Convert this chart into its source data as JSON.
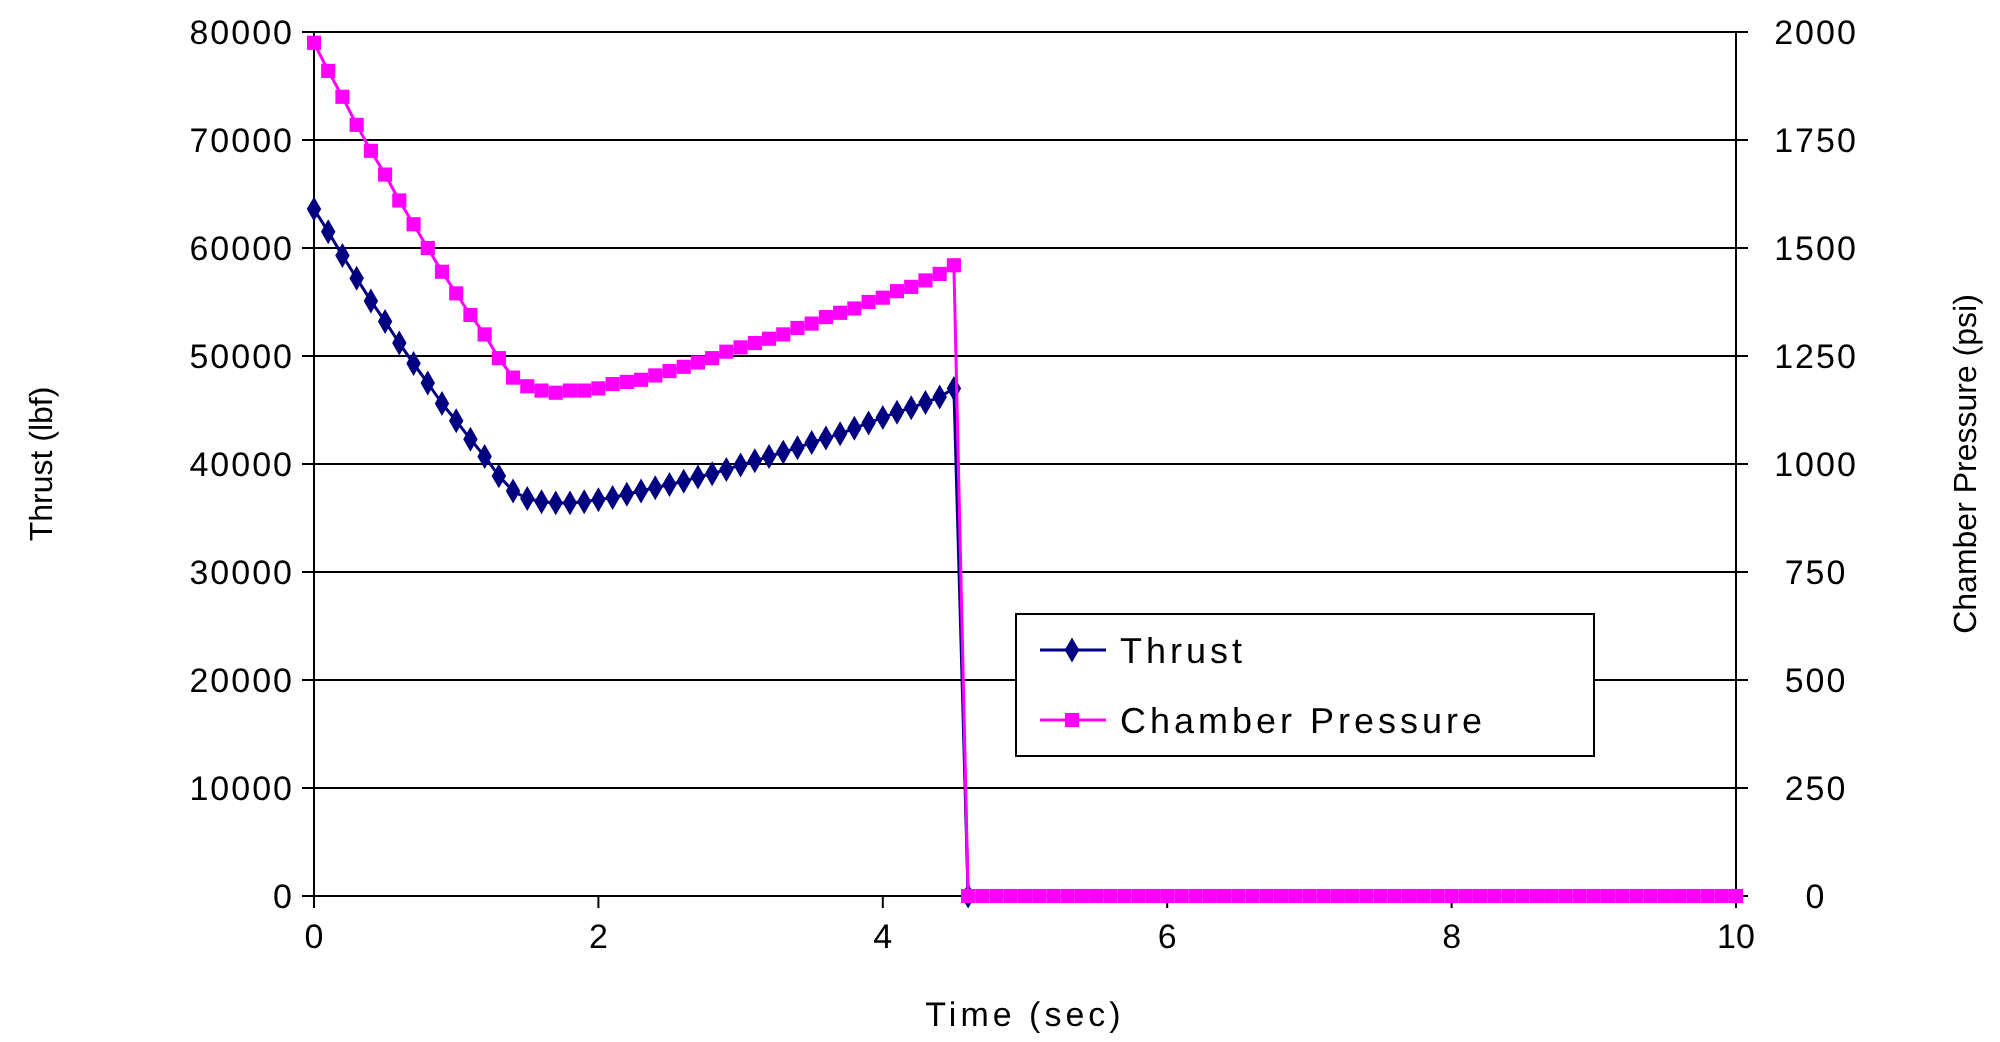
{
  "chart_data": {
    "type": "line",
    "xlabel": "Time (sec)",
    "ylabel": "Thrust (lbf)",
    "y2label": "Chamber Pressure (psi)",
    "x": [
      0,
      0.1,
      0.2,
      0.3,
      0.4,
      0.5,
      0.6,
      0.7,
      0.8,
      0.9,
      1,
      1.1,
      1.2,
      1.3,
      1.4,
      1.5,
      1.6,
      1.7,
      1.8,
      1.9,
      2,
      2.1,
      2.2,
      2.3,
      2.4,
      2.5,
      2.6,
      2.7,
      2.8,
      2.9,
      3,
      3.1,
      3.2,
      3.3,
      3.4,
      3.5,
      3.6,
      3.7,
      3.8,
      3.9,
      4,
      4.1,
      4.2,
      4.3,
      4.4,
      4.5,
      4.6,
      4.7,
      4.8,
      4.9,
      5,
      5.1,
      5.2,
      5.3,
      5.4,
      5.5,
      5.6,
      5.7,
      5.8,
      5.9,
      6,
      6.1,
      6.2,
      6.3,
      6.4,
      6.5,
      6.6,
      6.7,
      6.8,
      6.9,
      7,
      7.1,
      7.2,
      7.3,
      7.4,
      7.5,
      7.6,
      7.7,
      7.8,
      7.9,
      8,
      8.1,
      8.2,
      8.3,
      8.4,
      8.5,
      8.6,
      8.7,
      8.8,
      8.9,
      9,
      9.1,
      9.2,
      9.3,
      9.4,
      9.5,
      9.6,
      9.7,
      9.8,
      9.9,
      10
    ],
    "series": [
      {
        "name": "Thrust",
        "color": "#000080",
        "marker": "diamond",
        "values": [
          63600,
          61500,
          59300,
          57200,
          55100,
          53200,
          51200,
          49300,
          47500,
          45600,
          44000,
          42300,
          40700,
          38900,
          37500,
          36800,
          36500,
          36400,
          36400,
          36500,
          36700,
          36900,
          37200,
          37500,
          37800,
          38100,
          38400,
          38800,
          39100,
          39500,
          39900,
          40300,
          40700,
          41100,
          41500,
          42000,
          42400,
          42800,
          43300,
          43800,
          44300,
          44800,
          45200,
          45700,
          46200,
          47000,
          0,
          null,
          null,
          null,
          null,
          null,
          null,
          null,
          null,
          null,
          null,
          null,
          null,
          null,
          null,
          null,
          null,
          null,
          null,
          null,
          null,
          null,
          null,
          null,
          null,
          null,
          null,
          null,
          null,
          null,
          null,
          null,
          null,
          null,
          null,
          null,
          null,
          null,
          null,
          null,
          null,
          null,
          null,
          null,
          null,
          null,
          null,
          null,
          null,
          null,
          null,
          null,
          null,
          null,
          null
        ]
      },
      {
        "name": "Chamber Pressure",
        "color": "#ff00ff",
        "marker": "square",
        "axis": "y2",
        "values": [
          1975,
          1910,
          1850,
          1785,
          1725,
          1670,
          1610,
          1555,
          1500,
          1445,
          1395,
          1345,
          1300,
          1245,
          1200,
          1180,
          1170,
          1165,
          1170,
          1170,
          1175,
          1185,
          1190,
          1195,
          1205,
          1215,
          1225,
          1235,
          1245,
          1260,
          1270,
          1280,
          1290,
          1300,
          1315,
          1325,
          1340,
          1350,
          1360,
          1375,
          1385,
          1400,
          1410,
          1425,
          1440,
          1460,
          0,
          0,
          0,
          0,
          0,
          0,
          0,
          0,
          0,
          0,
          0,
          0,
          0,
          0,
          0,
          0,
          0,
          0,
          0,
          0,
          0,
          0,
          0,
          0,
          0,
          0,
          0,
          0,
          0,
          0,
          0,
          0,
          0,
          0,
          0,
          0,
          0,
          0,
          0,
          0,
          0,
          0,
          0,
          0,
          0,
          0,
          0,
          0,
          0,
          0,
          0,
          0,
          0,
          0,
          0
        ]
      }
    ],
    "xlim": [
      0,
      10
    ],
    "xticks": [
      0,
      2,
      4,
      6,
      8,
      10
    ],
    "ylim": [
      0,
      80000
    ],
    "yticks": [
      0,
      10000,
      20000,
      30000,
      40000,
      50000,
      60000,
      70000,
      80000
    ],
    "y2lim": [
      0,
      2000
    ],
    "y2ticks": [
      0,
      250,
      500,
      750,
      1000,
      1250,
      1500,
      1750,
      2000
    ],
    "grid": "y",
    "legend": "right"
  }
}
